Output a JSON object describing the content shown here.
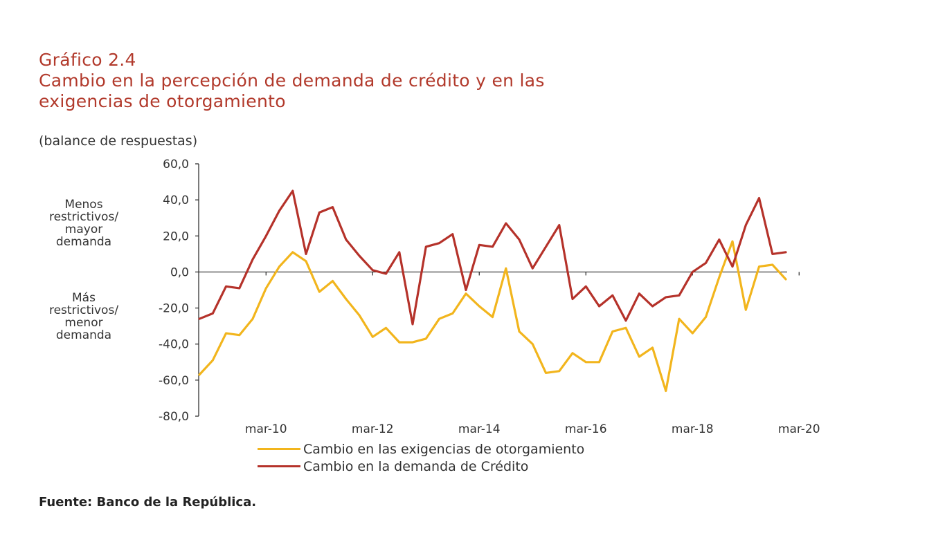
{
  "header": {
    "graphic_number": "Gráfico 2.4",
    "title_line1": "Cambio en la percepción de demanda de crédito y en las",
    "title_line2": "exigencias de otorgamiento"
  },
  "unit_label": "(balance de respuestas)",
  "upper_annotation": [
    "Menos",
    "restrictivos/",
    "mayor",
    "demanda"
  ],
  "lower_annotation": [
    "Más",
    "restrictivos/",
    "menor",
    "demanda"
  ],
  "source": "Fuente: Banco de la República.",
  "colors": {
    "exigencias": "#f2b51d",
    "demanda": "#b5322a",
    "title": "#b23a2c"
  },
  "chart_data": {
    "type": "line",
    "title": "Cambio en la percepción de demanda de crédito y en las exigencias de otorgamiento",
    "ylabel": "(balance de respuestas)",
    "ylim": [
      -80,
      60
    ],
    "yticks": [
      60,
      40,
      20,
      0,
      -20,
      -40,
      -60,
      -80
    ],
    "ytick_labels": [
      "60,0",
      "40,0",
      "20,0",
      "0,0",
      "-20,0",
      "-40,0",
      "-60,0",
      "-80,0"
    ],
    "xtick_labels": [
      "mar-10",
      "mar-12",
      "mar-14",
      "mar-16",
      "mar-18",
      "mar-20"
    ],
    "xtick_index": [
      5,
      13,
      21,
      29,
      37,
      45
    ],
    "grid": false,
    "series": [
      {
        "name": "Cambio en las exigencias de otorgamiento",
        "color": "#f2b51d",
        "values": [
          -57,
          -49,
          -34,
          -35,
          -26,
          -9,
          3,
          11,
          6,
          -11,
          -5,
          -15,
          -24,
          -36,
          -31,
          -39,
          -39,
          -37,
          -26,
          -23,
          -12,
          -19,
          -25,
          2,
          -33,
          -40,
          -56,
          -55,
          -45,
          -50,
          -50,
          -33,
          -31,
          -47,
          -42,
          -66,
          -26,
          -34,
          -25,
          -3,
          17,
          -21,
          3,
          4,
          -4
        ]
      },
      {
        "name": "Cambio en la demanda de Crédito",
        "color": "#b5322a",
        "values": [
          -26,
          -23,
          -8,
          -9,
          7,
          20,
          34,
          45,
          10,
          33,
          36,
          18,
          9,
          1,
          -1,
          11,
          -29,
          14,
          16,
          21,
          -10,
          15,
          14,
          27,
          18,
          2,
          14,
          26,
          -15,
          -8,
          -19,
          -13,
          -27,
          -12,
          -19,
          -14,
          -13,
          0,
          5,
          18,
          3,
          26,
          41,
          10,
          11
        ]
      }
    ]
  }
}
